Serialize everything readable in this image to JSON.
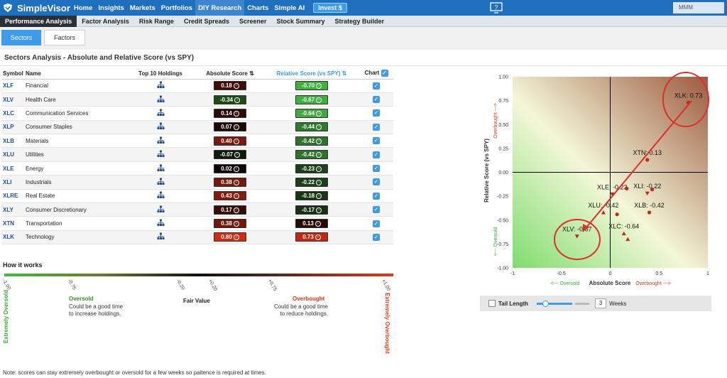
{
  "app": {
    "name": "SimpleVisor",
    "user": "MMM"
  },
  "topnav": [
    "Home",
    "Insights",
    "Markets",
    "Portfolios",
    "DIY Research",
    "Charts",
    "Simple AI"
  ],
  "topnav_active": "DIY Research",
  "invest_label": "Invest $",
  "subnav": [
    "Performance Analysis",
    "Factor Analysis",
    "Risk Range",
    "Credit Spreads",
    "Screener",
    "Stock Summary",
    "Strategy Builder"
  ],
  "subnav_active": "Performance Analysis",
  "tabs": [
    "Sectors",
    "Factors"
  ],
  "page_title": "Sectors Analysis - Absolute and Relative Score (vs SPY)",
  "columns": {
    "symbol": "Symbol",
    "name": "Name",
    "holdings": "Top 10 Holdings",
    "abs": "Absolute Score",
    "rel": "Relative Score (vs SPY)",
    "chart": "Chart"
  },
  "sort_icon": "⇅",
  "rows": [
    {
      "symbol": "XLF",
      "name": "Financial",
      "abs": "0.18",
      "rel": "-0.70",
      "abs_color": "#3e0d05",
      "rel_color": "#3db33d"
    },
    {
      "symbol": "XLV",
      "name": "Health Care",
      "abs": "-0.34",
      "rel": "-0.67",
      "abs_color": "#1f4a14",
      "rel_color": "#3fb03d"
    },
    {
      "symbol": "XLC",
      "name": "Communication Services",
      "abs": "0.14",
      "rel": "-0.64",
      "abs_color": "#2c0b06",
      "rel_color": "#42a83f"
    },
    {
      "symbol": "XLP",
      "name": "Consumer Staples",
      "abs": "0.07",
      "rel": "-0.44",
      "abs_color": "#1c0805",
      "rel_color": "#2e7a2c"
    },
    {
      "symbol": "XLB",
      "name": "Materials",
      "abs": "0.40",
      "rel": "-0.42",
      "abs_color": "#7a1a0c",
      "rel_color": "#2d742a"
    },
    {
      "symbol": "XLU",
      "name": "Utilities",
      "abs": "-0.07",
      "rel": "-0.42",
      "abs_color": "#0e1c0b",
      "rel_color": "#2d742a"
    },
    {
      "symbol": "XLE",
      "name": "Energy",
      "abs": "0.02",
      "rel": "-0.23",
      "abs_color": "#0f0706",
      "rel_color": "#1c4018"
    },
    {
      "symbol": "XLI",
      "name": "Industrials",
      "abs": "0.38",
      "rel": "-0.22",
      "abs_color": "#74180b",
      "rel_color": "#1b3d17"
    },
    {
      "symbol": "XLRE",
      "name": "Real Estate",
      "abs": "0.43",
      "rel": "-0.18",
      "abs_color": "#831c0d",
      "rel_color": "#173413"
    },
    {
      "symbol": "XLY",
      "name": "Consumer Discretionary",
      "abs": "0.17",
      "rel": "-0.17",
      "abs_color": "#350c06",
      "rel_color": "#163212"
    },
    {
      "symbol": "XTN",
      "name": "Transportation",
      "abs": "0.38",
      "rel": "0.13",
      "abs_color": "#74180b",
      "rel_color": "#280a06"
    },
    {
      "symbol": "XLK",
      "name": "Technology",
      "abs": "0.80",
      "rel": "0.73",
      "abs_color": "#d42a12",
      "rel_color": "#c42610"
    }
  ],
  "how": {
    "title": "How it works",
    "scale": [
      "-1.00",
      "-0.75",
      "-0.20",
      "+0.20",
      "+0.75",
      "+1.00"
    ],
    "extremely_oversold": "Extremely Oversold",
    "extremely_overbought": "Extremely Overbought",
    "oversold_title": "Oversold",
    "oversold_desc": "Could be a good time to increase holdings.",
    "fair_value": "Fair Value",
    "overbought_title": "Overbought",
    "overbought_desc": "Could be a good time to reduce holdings.",
    "note": "Note: scores can stay extremely overbought or oversold for a few weeks so paitence is required at times."
  },
  "chart_data": {
    "type": "scatter",
    "xlabel": "Absolute Score",
    "ylabel": "Relative Score (vs SPY)",
    "x_left_label": "<--- Oversold",
    "x_right_label": "Overbought --->",
    "y_bottom_label": "<--- Oversold",
    "y_top_label": "Overbought --->",
    "xlim": [
      -1,
      1
    ],
    "ylim": [
      -1,
      1
    ],
    "xticks": [
      "-1",
      "-0.5",
      "0",
      "0.5",
      "1"
    ],
    "yticks": [
      "1.00",
      "0.75",
      "0.50",
      "0.25",
      "0.00",
      "-0.25",
      "-0.50",
      "-0.75",
      "-1.00"
    ],
    "points": [
      {
        "symbol": "XLK",
        "x": 0.8,
        "y": 0.73,
        "label": "XLK: 0.73",
        "marker": "circle"
      },
      {
        "symbol": "XTN",
        "x": 0.38,
        "y": 0.13,
        "label": "XTN: 0.13",
        "marker": "circle"
      },
      {
        "symbol": "XLE",
        "x": 0.02,
        "y": -0.23,
        "label": "XLE: -0.23",
        "marker": "down"
      },
      {
        "symbol": "XLI",
        "x": 0.38,
        "y": -0.22,
        "label": "XLI: -0.22",
        "marker": "down"
      },
      {
        "symbol": "XLU",
        "x": -0.07,
        "y": -0.42,
        "label": "XLU: -0.42",
        "marker": "up"
      },
      {
        "symbol": "XLB",
        "x": 0.4,
        "y": -0.42,
        "label": "XLB: -0.42",
        "marker": "circle"
      },
      {
        "symbol": "XLC",
        "x": 0.14,
        "y": -0.64,
        "label": "XLC: -0.64",
        "marker": "up"
      },
      {
        "symbol": "XLV",
        "x": -0.34,
        "y": -0.67,
        "label": "XLV: -0.67",
        "marker": "down"
      },
      {
        "symbol": "XLF",
        "x": 0.18,
        "y": -0.7,
        "label": "",
        "marker": "up"
      },
      {
        "symbol": "XLP",
        "x": 0.07,
        "y": -0.44,
        "label": "",
        "marker": "circle"
      },
      {
        "symbol": "XLRE",
        "x": 0.43,
        "y": -0.18,
        "label": "",
        "marker": "circle"
      },
      {
        "symbol": "XLY",
        "x": 0.17,
        "y": -0.17,
        "label": "",
        "marker": "circle"
      }
    ]
  },
  "tail": {
    "label": "Tail Length",
    "value": "3",
    "unit": "Weeks",
    "slider_fraction": 0.15
  }
}
